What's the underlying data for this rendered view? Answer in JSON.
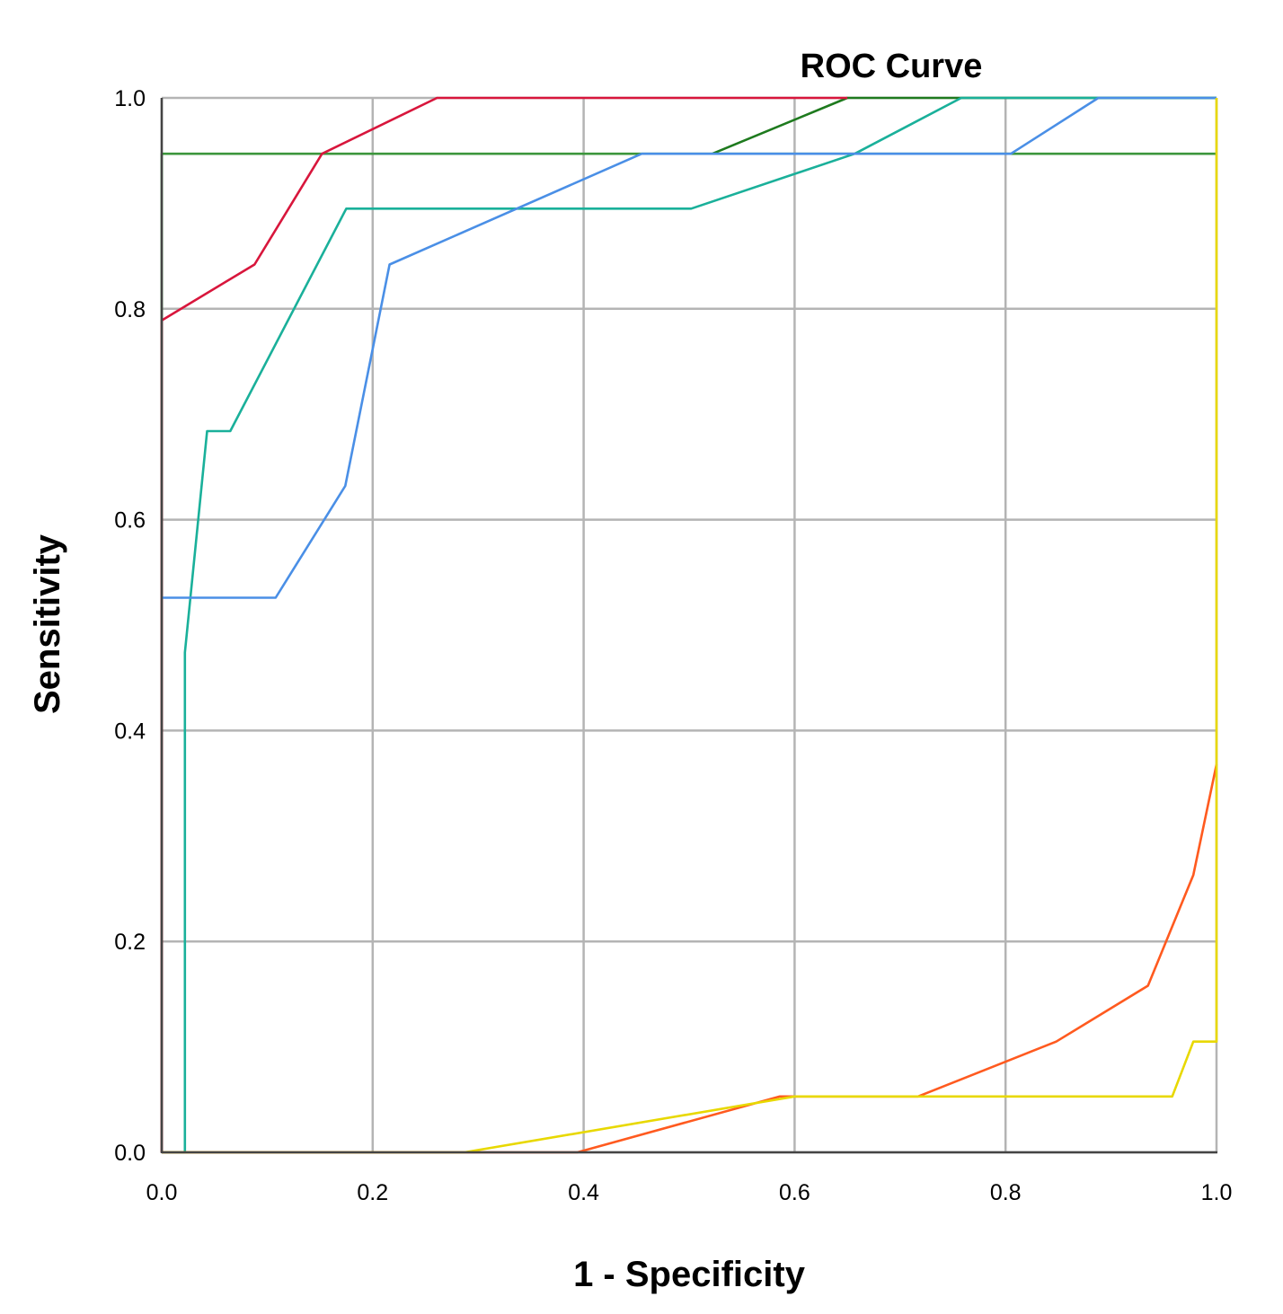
{
  "chart_data": {
    "type": "line",
    "title": "ROC Curve",
    "xlabel": "1 - Specificity",
    "ylabel": "Sensitivity",
    "xlim": [
      0,
      1
    ],
    "ylim": [
      0,
      1
    ],
    "grid": true,
    "legend": "none",
    "xticks": [
      "0.0",
      "0.2",
      "0.4",
      "0.6",
      "0.8",
      "1.0"
    ],
    "yticks": [
      "0.0",
      "0.2",
      "0.4",
      "0.6",
      "0.8",
      "1.0"
    ],
    "series": [
      {
        "name": "reference-line",
        "color": "#3c963c",
        "x": [
          0,
          0,
          0.522,
          1.0
        ],
        "y": [
          0,
          0.947,
          0.947,
          0.947
        ]
      },
      {
        "name": "series-dark-green",
        "color": "#1e7a1e",
        "x": [
          0.522,
          0.65,
          1.0
        ],
        "y": [
          0.947,
          1.0,
          1.0
        ]
      },
      {
        "name": "series-red",
        "color": "#d8163c",
        "x": [
          0,
          0,
          0.088,
          0.152,
          0.261,
          0.65
        ],
        "y": [
          0,
          0.789,
          0.842,
          0.947,
          1.0,
          1.0
        ]
      },
      {
        "name": "series-teal",
        "color": "#1ab09a",
        "x": [
          0,
          0.022,
          0.022,
          0.043,
          0.065,
          0.175,
          0.502,
          0.657,
          0.758,
          1.0
        ],
        "y": [
          0,
          0,
          0.474,
          0.684,
          0.684,
          0.895,
          0.895,
          0.947,
          1.0,
          1.0
        ]
      },
      {
        "name": "series-blue",
        "color": "#4a8fe6",
        "x": [
          0,
          0.108,
          0.174,
          0.216,
          0.455,
          0.805,
          0.888,
          1.0
        ],
        "y": [
          0.526,
          0.526,
          0.632,
          0.842,
          0.947,
          0.947,
          1.0,
          1.0
        ]
      },
      {
        "name": "series-orange",
        "color": "#ff5a1f",
        "x": [
          0,
          0.394,
          0.586,
          0.717,
          0.848,
          0.935,
          0.978,
          1.0
        ],
        "y": [
          0,
          0,
          0.053,
          0.053,
          0.105,
          0.158,
          0.263,
          0.368
        ]
      },
      {
        "name": "series-yellow",
        "color": "#e8d800",
        "x": [
          0,
          0.287,
          0.6,
          0.958,
          0.978,
          1.0,
          1.0
        ],
        "y": [
          0,
          0,
          0.053,
          0.053,
          0.105,
          0.105,
          1.0
        ]
      }
    ]
  }
}
